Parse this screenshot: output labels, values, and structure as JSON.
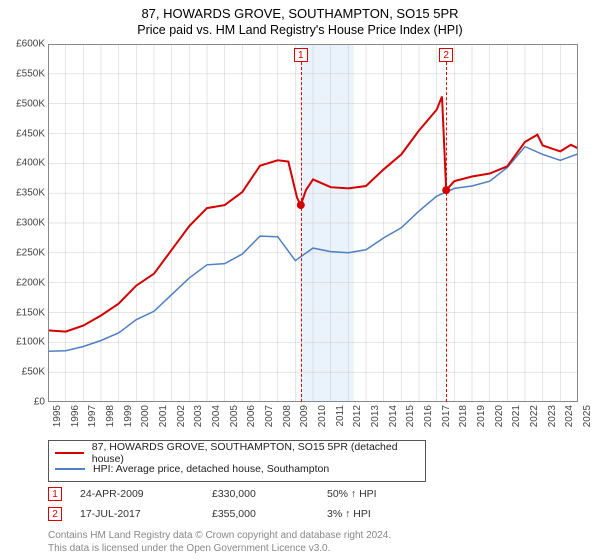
{
  "title": {
    "main": "87, HOWARDS GROVE, SOUTHAMPTON, SO15 5PR",
    "sub": "Price paid vs. HM Land Registry's House Price Index (HPI)",
    "fontsize_main": 13,
    "fontsize_sub": 12.5
  },
  "chart": {
    "type": "line",
    "background_color": "#ffffff",
    "grid_color": "#cccccc",
    "axis_color": "#888888",
    "shaded_band": {
      "from_year": 2009.3,
      "to_year": 2012.3,
      "fill": "#eaf2fb"
    },
    "y": {
      "min": 0,
      "max": 600000,
      "step": 50000,
      "labels": [
        "£0",
        "£50K",
        "£100K",
        "£150K",
        "£200K",
        "£250K",
        "£300K",
        "£350K",
        "£400K",
        "£450K",
        "£500K",
        "£550K",
        "£600K"
      ],
      "label_fontsize": 10
    },
    "x": {
      "min": 1995,
      "max": 2025,
      "step": 1,
      "labels": [
        "1995",
        "1996",
        "1997",
        "1998",
        "1999",
        "2000",
        "2001",
        "2002",
        "2003",
        "2004",
        "2005",
        "2006",
        "2007",
        "2008",
        "2009",
        "2010",
        "2011",
        "2012",
        "2013",
        "2014",
        "2015",
        "2016",
        "2017",
        "2018",
        "2019",
        "2020",
        "2021",
        "2022",
        "2023",
        "2024",
        "2025"
      ],
      "label_fontsize": 10
    },
    "series": [
      {
        "id": "property",
        "label": "87, HOWARDS GROVE, SOUTHAMPTON, SO15 5PR (detached house)",
        "color": "#d40000",
        "width": 2,
        "points": [
          [
            1995,
            120000
          ],
          [
            1996,
            118000
          ],
          [
            1997,
            128000
          ],
          [
            1998,
            145000
          ],
          [
            1999,
            165000
          ],
          [
            2000,
            195000
          ],
          [
            2001,
            215000
          ],
          [
            2002,
            255000
          ],
          [
            2003,
            295000
          ],
          [
            2004,
            325000
          ],
          [
            2005,
            330000
          ],
          [
            2006,
            352000
          ],
          [
            2007,
            396000
          ],
          [
            2008,
            405000
          ],
          [
            2008.6,
            403000
          ],
          [
            2009.1,
            342000
          ],
          [
            2009.31,
            330000
          ],
          [
            2009.6,
            355000
          ],
          [
            2010,
            373000
          ],
          [
            2011,
            360000
          ],
          [
            2012,
            358000
          ],
          [
            2013,
            362000
          ],
          [
            2014,
            390000
          ],
          [
            2015,
            415000
          ],
          [
            2016,
            455000
          ],
          [
            2017,
            490000
          ],
          [
            2017.3,
            512000
          ],
          [
            2017.54,
            355000
          ],
          [
            2018,
            370000
          ],
          [
            2019,
            378000
          ],
          [
            2020,
            383000
          ],
          [
            2021,
            395000
          ],
          [
            2022,
            436000
          ],
          [
            2022.7,
            448000
          ],
          [
            2023,
            430000
          ],
          [
            2024,
            420000
          ],
          [
            2024.6,
            431000
          ],
          [
            2025,
            425000
          ]
        ],
        "sale_markers": [
          {
            "n": 1,
            "year": 2009.31,
            "value": 330000
          },
          {
            "n": 2,
            "year": 2017.54,
            "value": 355000
          }
        ]
      },
      {
        "id": "hpi",
        "label": "HPI: Average price, detached house, Southampton",
        "color": "#4f7fc4",
        "width": 1.5,
        "points": [
          [
            1995,
            85000
          ],
          [
            1996,
            86000
          ],
          [
            1997,
            93000
          ],
          [
            1998,
            103000
          ],
          [
            1999,
            116000
          ],
          [
            2000,
            138000
          ],
          [
            2001,
            152000
          ],
          [
            2002,
            180000
          ],
          [
            2003,
            208000
          ],
          [
            2004,
            230000
          ],
          [
            2005,
            232000
          ],
          [
            2006,
            248000
          ],
          [
            2007,
            278000
          ],
          [
            2008,
            277000
          ],
          [
            2009,
            237000
          ],
          [
            2010,
            258000
          ],
          [
            2011,
            252000
          ],
          [
            2012,
            250000
          ],
          [
            2013,
            255000
          ],
          [
            2014,
            275000
          ],
          [
            2015,
            292000
          ],
          [
            2016,
            320000
          ],
          [
            2017,
            345000
          ],
          [
            2018,
            358000
          ],
          [
            2019,
            362000
          ],
          [
            2020,
            370000
          ],
          [
            2021,
            393000
          ],
          [
            2022,
            428000
          ],
          [
            2023,
            415000
          ],
          [
            2024,
            405000
          ],
          [
            2025,
            416000
          ]
        ]
      }
    ],
    "marker_boxes": [
      {
        "n": "1",
        "year": 2009.31
      },
      {
        "n": "2",
        "year": 2017.54
      }
    ]
  },
  "legend": {
    "border_color": "#555555",
    "items": [
      {
        "color": "#d40000",
        "label": "87, HOWARDS GROVE, SOUTHAMPTON, SO15 5PR (detached house)"
      },
      {
        "color": "#4f7fc4",
        "label": "HPI: Average price, detached house, Southampton"
      }
    ]
  },
  "sales": [
    {
      "n": "1",
      "date": "24-APR-2009",
      "price": "£330,000",
      "pct": "50% ↑ HPI"
    },
    {
      "n": "2",
      "date": "17-JUL-2017",
      "price": "£355,000",
      "pct": "3% ↑ HPI"
    }
  ],
  "footer": {
    "line1": "Contains HM Land Registry data © Crown copyright and database right 2024.",
    "line2": "This data is licensed under the Open Government Licence v3.0."
  }
}
